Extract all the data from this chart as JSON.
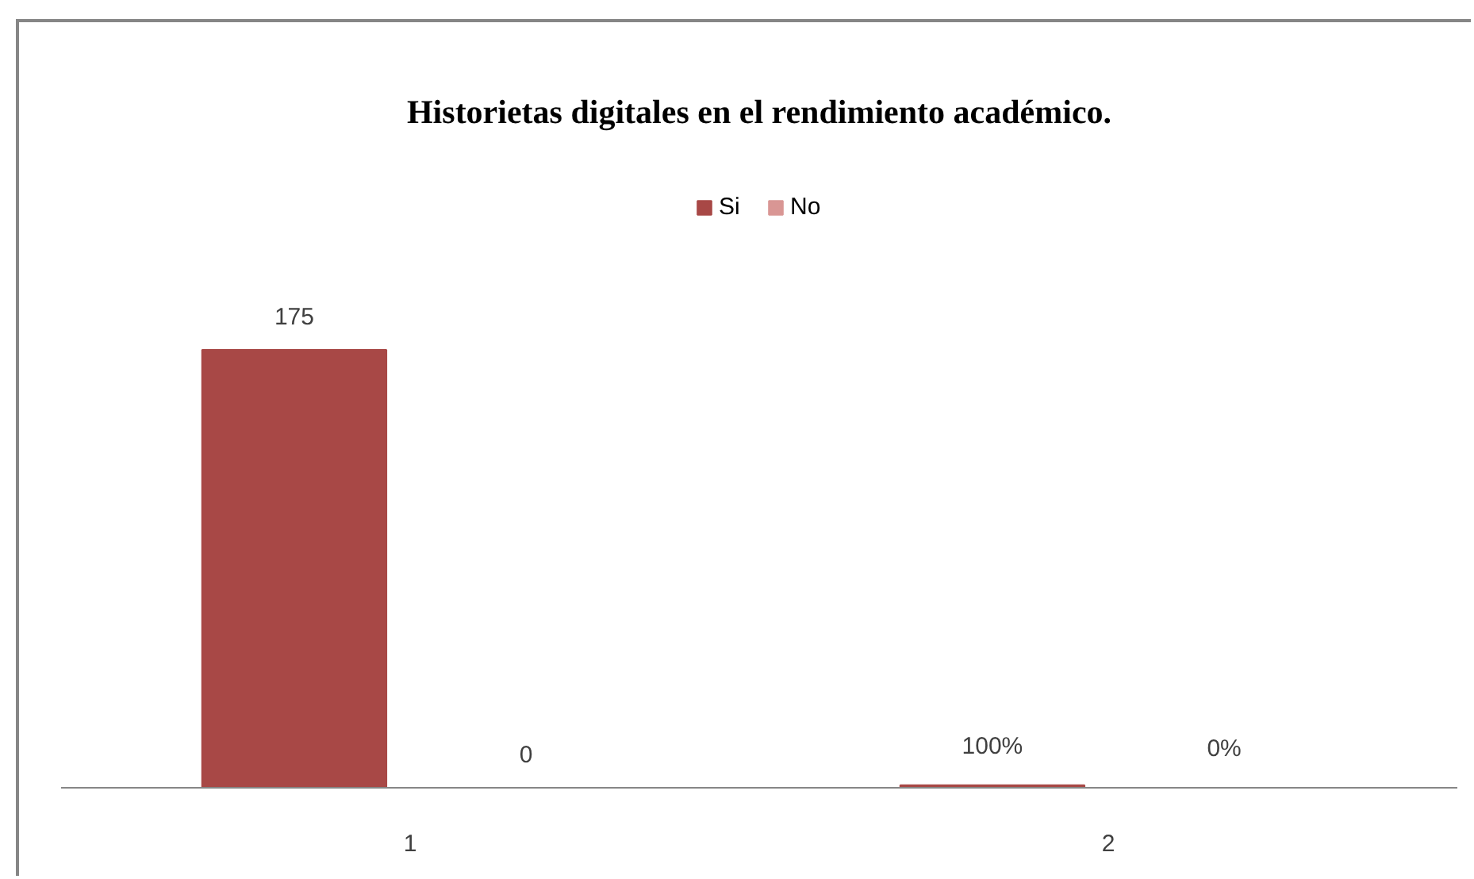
{
  "chart_data": {
    "type": "bar",
    "title": "Historietas digitales en el rendimiento académico.",
    "categories": [
      "1",
      "2"
    ],
    "series": [
      {
        "name": "Si",
        "color": "#a84846",
        "values": [
          175,
          1
        ],
        "value_labels": [
          "175",
          "100%"
        ]
      },
      {
        "name": "No",
        "color": "#d99694",
        "values": [
          0,
          0
        ],
        "value_labels": [
          "0",
          "0%"
        ]
      }
    ],
    "legend": "top",
    "grid": false
  }
}
